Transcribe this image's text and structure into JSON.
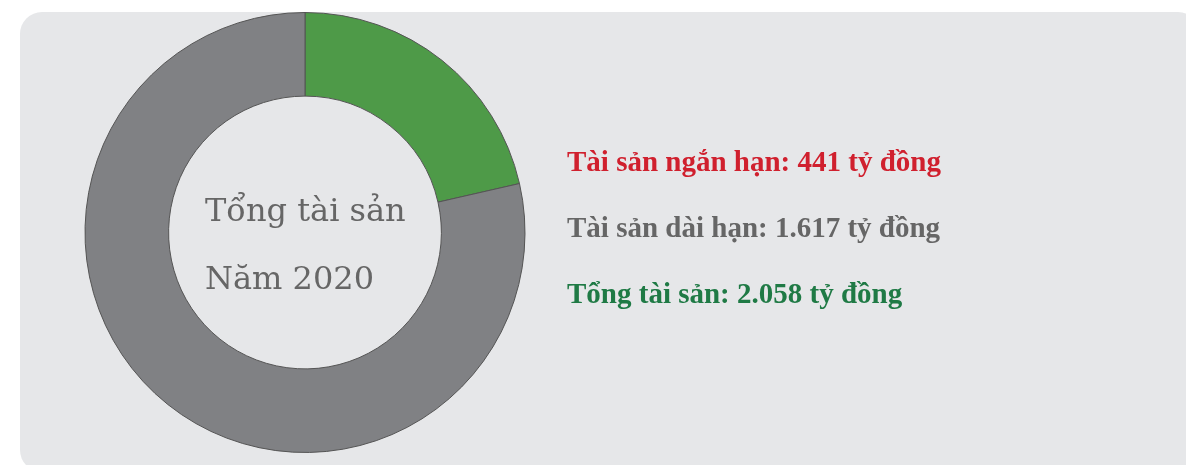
{
  "chart_data": {
    "type": "donut",
    "title": "Tổng tài sản",
    "subtitle": "Năm 2020",
    "categories": [
      "Tài sản ngắn hạn: 441 tỷ đồng",
      "Tài sản dài hạn: 1.617 tỷ đồng"
    ],
    "values": [
      441,
      1617
    ],
    "colors": [
      "#4e9a48",
      "#808184"
    ],
    "annotations": [
      "Tổng tài sản: 2.058 tỷ đồng"
    ],
    "legend": false
  }
}
